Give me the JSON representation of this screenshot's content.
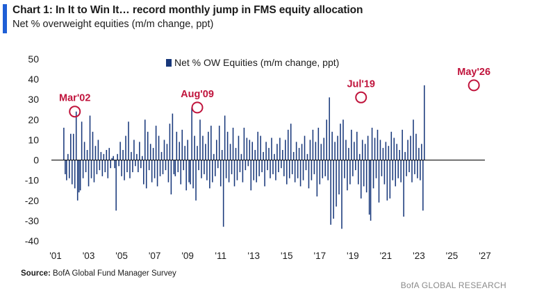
{
  "header": {
    "title": "Chart 1: In It to Win It… record monthly jump in FMS equity allocation",
    "subtitle": "Net % overweight equities (m/m change, ppt)"
  },
  "footer": {
    "source_label": "Source:",
    "source_text": "BofA Global Fund Manager Survey",
    "brand": "BofA GLOBAL RESEARCH"
  },
  "colors": {
    "accent": "#1f5fd6",
    "series": "#17377a",
    "annotation": "#c0143c"
  },
  "chart_data": {
    "type": "bar",
    "title": "Chart 1: In It to Win It… record monthly jump in FMS equity allocation",
    "subtitle": "Net % overweight equities (m/m change, ppt)",
    "xlabel": "",
    "ylabel": "",
    "x_ticks": [
      "'01",
      "'03",
      "'05",
      "'07",
      "'09",
      "'11",
      "'13",
      "'15",
      "'17",
      "'19",
      "'21",
      "'23",
      "'25",
      "'27"
    ],
    "y_ticks": [
      50,
      40,
      30,
      20,
      10,
      0,
      -10,
      -20,
      -30,
      -40
    ],
    "ylim": [
      -40,
      50
    ],
    "xlim": [
      2001,
      2027
    ],
    "grid": false,
    "legend": "top-center",
    "series": [
      {
        "name": "Net % OW Equities (m/m change, ppt)",
        "x_start": "2001-07",
        "frequency": "monthly",
        "values": [
          16,
          -7,
          -10,
          3,
          -9,
          13,
          -12,
          13,
          -14,
          24,
          -20,
          -16,
          -15,
          19,
          -9,
          9,
          -6,
          5,
          -13,
          22,
          -9,
          14,
          -11,
          7,
          -7,
          10,
          -5,
          4,
          -8,
          3,
          -6,
          5,
          -9,
          6,
          -4,
          1,
          2,
          -4,
          -25,
          3,
          -3,
          9,
          -8,
          5,
          -10,
          12,
          -6,
          19,
          -9,
          4,
          -6,
          10,
          -3,
          3,
          -6,
          9,
          -4,
          2,
          -12,
          20,
          -14,
          14,
          -5,
          8,
          -11,
          6,
          -9,
          17,
          -13,
          12,
          -8,
          4,
          -7,
          10,
          -5,
          8,
          -11,
          18,
          -17,
          23,
          -7,
          -8,
          14,
          -6,
          9,
          -12,
          15,
          -5,
          7,
          -15,
          10,
          -11,
          -12,
          26,
          -14,
          12,
          -20,
          7,
          -5,
          20,
          -9,
          12,
          -7,
          8,
          -10,
          14,
          -14,
          17,
          -11,
          3,
          -8,
          10,
          -4,
          17,
          -13,
          5,
          -33,
          22,
          -9,
          14,
          -11,
          8,
          -7,
          16,
          -13,
          6,
          -10,
          12,
          -6,
          3,
          -11,
          16,
          -5,
          11,
          -3,
          10,
          -15,
          9,
          -10,
          5,
          -11,
          14,
          -8,
          12,
          -6,
          4,
          -13,
          9,
          -5,
          6,
          -9,
          11,
          -7,
          3,
          -10,
          8,
          -6,
          11,
          -4,
          5,
          -8,
          10,
          -12,
          15,
          -9,
          18,
          -7,
          4,
          -11,
          9,
          -9,
          6,
          -13,
          8,
          -10,
          12,
          -5,
          3,
          -14,
          10,
          -10,
          15,
          -7,
          9,
          -18,
          16,
          -12,
          8,
          -9,
          11,
          -8,
          20,
          -10,
          31,
          -32,
          14,
          -29,
          9,
          -23,
          12,
          -17,
          18,
          -34,
          20,
          -9,
          10,
          -15,
          6,
          -12,
          15,
          -8,
          9,
          -5,
          14,
          -12,
          3,
          -19,
          10,
          -13,
          8,
          -16,
          12,
          -27,
          -30,
          16,
          -14,
          11,
          -9,
          15,
          -21,
          10,
          -8,
          6,
          -12,
          9,
          -20,
          7,
          -19,
          14,
          -10,
          11,
          -13,
          8,
          -9,
          5,
          -11,
          15,
          -28,
          4,
          -8,
          10,
          -6,
          12,
          -11,
          20,
          -7,
          13,
          -9,
          6,
          -10,
          8,
          -25,
          37
        ],
        "annotations": [
          {
            "label": "Mar'02",
            "value": 24
          },
          {
            "label": "Aug'09",
            "value": 26
          },
          {
            "label": "Jul'19",
            "value": 31
          },
          {
            "label": "May'26",
            "value": 37
          }
        ]
      }
    ]
  }
}
